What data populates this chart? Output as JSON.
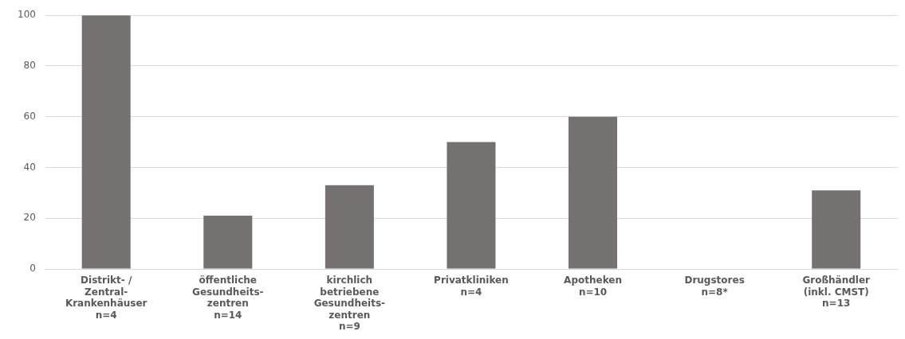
{
  "chart_data": {
    "type": "bar",
    "categories": [
      "Distrikt- /\nZentral-\nKrankenhäuser\nn=4",
      "öffentliche\nGesundheits-\nzentren\nn=14",
      "kirchlich\nbetriebene\nGesundheits-\nzentren\nn=9",
      "Privatkliniken\nn=4",
      "Apotheken\nn=10",
      "Drugstores\nn=8*",
      "Großhändler\n(inkl. CMST)\nn=13"
    ],
    "values": [
      100,
      21,
      33,
      50,
      60,
      0,
      31
    ],
    "color": "#767171",
    "ylim": [
      0,
      100
    ],
    "yticks": [
      0,
      20,
      40,
      60,
      80,
      100
    ],
    "grid": "y",
    "legend": false
  }
}
